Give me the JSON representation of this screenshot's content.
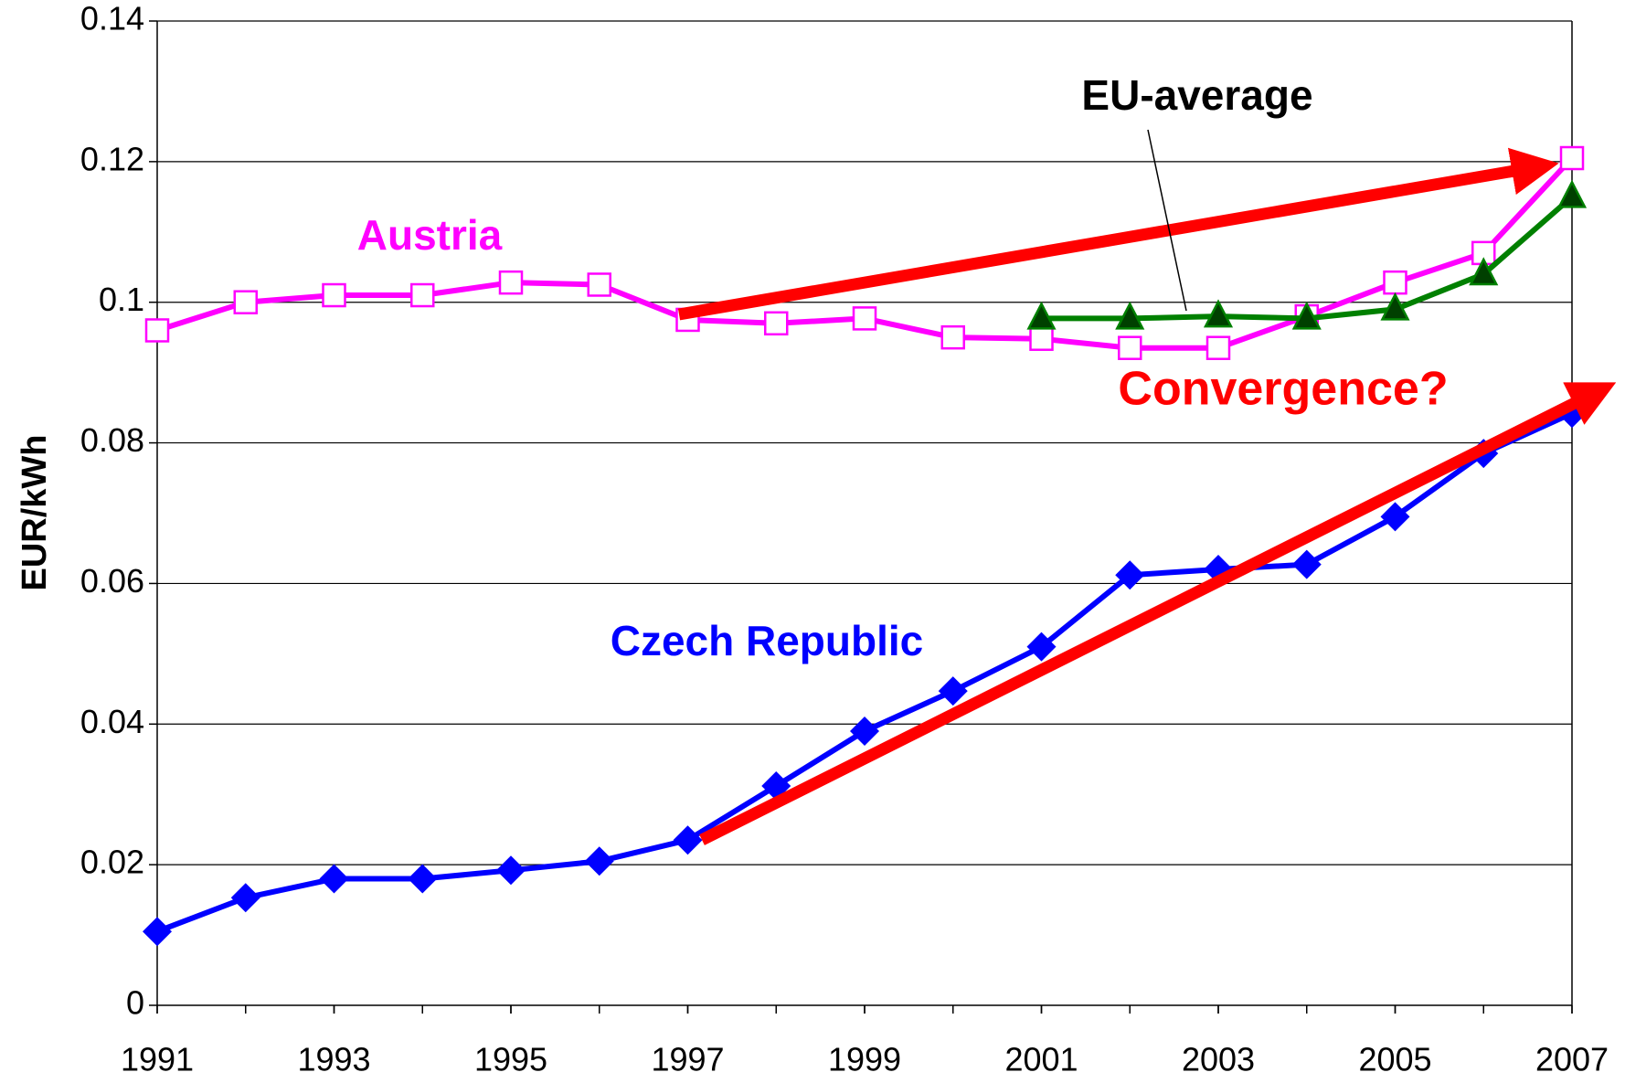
{
  "chart_data": {
    "type": "line",
    "y_label": "EUR/kWh",
    "x": [
      1991,
      1992,
      1993,
      1994,
      1995,
      1996,
      1997,
      1998,
      1999,
      2000,
      2001,
      2002,
      2003,
      2004,
      2005,
      2006,
      2007
    ],
    "series": [
      {
        "name": "Austria",
        "color": "#ff00ff",
        "marker": "square",
        "values": [
          0.096,
          0.1,
          0.101,
          0.101,
          0.1028,
          0.1025,
          0.0975,
          0.097,
          0.0977,
          0.095,
          0.0948,
          0.0935,
          0.0935,
          0.098,
          0.1028,
          0.107,
          0.1205
        ]
      },
      {
        "name": "EU-average",
        "color": "#008000",
        "marker": "triangle",
        "values": [
          null,
          null,
          null,
          null,
          null,
          null,
          null,
          null,
          null,
          null,
          0.0977,
          0.0977,
          0.098,
          0.0977,
          0.099,
          0.104,
          0.115
        ]
      },
      {
        "name": "Czech Republic",
        "color": "#0000ff",
        "marker": "diamond",
        "values": [
          0.0105,
          0.0153,
          0.018,
          0.018,
          0.0192,
          0.0205,
          0.0235,
          0.0312,
          0.039,
          0.0447,
          0.051,
          0.0612,
          0.062,
          0.0627,
          0.0695,
          0.0785,
          0.0842
        ]
      }
    ],
    "annotations": [
      "Convergence?"
    ],
    "xlim": [
      1991,
      2007
    ],
    "xticks": [
      1991,
      1993,
      1995,
      1997,
      1999,
      2001,
      2003,
      2005,
      2007
    ],
    "ylim": [
      0,
      0.14
    ],
    "yticks": [
      0,
      0.02,
      0.04,
      0.06,
      0.08,
      0.1,
      0.12,
      0.14
    ],
    "grid": true
  }
}
